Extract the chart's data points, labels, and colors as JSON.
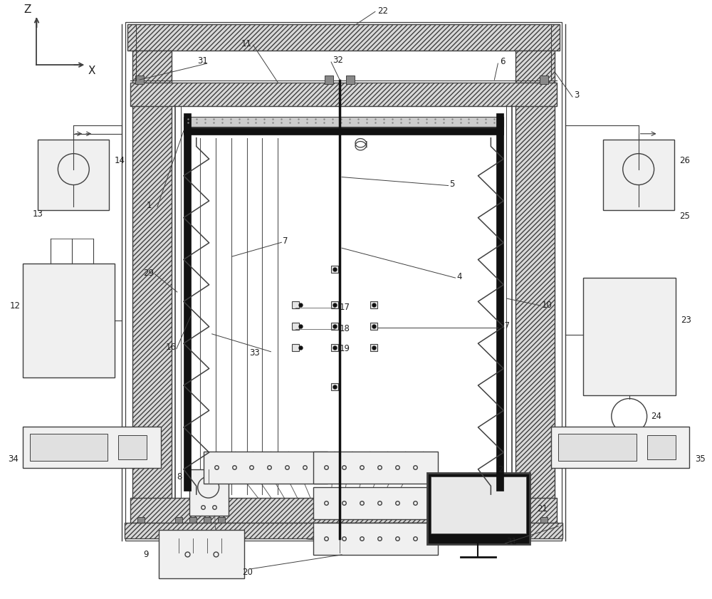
{
  "bg": "#ffffff",
  "lc": "#404040",
  "dark": "#111111",
  "gray_fc": "#d8d8d8",
  "lt_gray": "#f0f0f0",
  "figsize": [
    10.0,
    8.41
  ],
  "dpi": 100
}
